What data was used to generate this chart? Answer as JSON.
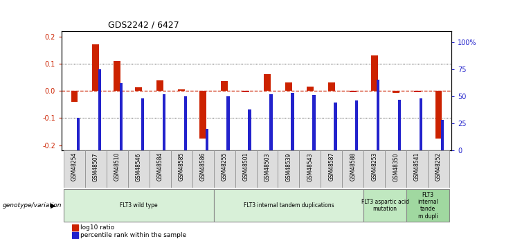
{
  "title": "GDS2242 / 6427",
  "samples": [
    "GSM48254",
    "GSM48507",
    "GSM48510",
    "GSM48546",
    "GSM48584",
    "GSM48585",
    "GSM48586",
    "GSM48255",
    "GSM48501",
    "GSM48503",
    "GSM48539",
    "GSM48543",
    "GSM48587",
    "GSM48588",
    "GSM48253",
    "GSM48350",
    "GSM48541",
    "GSM48252"
  ],
  "log10_ratio": [
    -0.04,
    0.17,
    0.11,
    0.012,
    0.038,
    0.006,
    -0.175,
    0.036,
    -0.004,
    0.062,
    0.032,
    0.016,
    0.03,
    -0.004,
    0.13,
    -0.008,
    -0.005,
    -0.175
  ],
  "percentile_rank": [
    30,
    75,
    62,
    48,
    52,
    50,
    20,
    50,
    38,
    52,
    53,
    51,
    44,
    46,
    65,
    47,
    48,
    28
  ],
  "groups": [
    {
      "label": "FLT3 wild type",
      "start": 0,
      "end": 6,
      "color": "#d8f0d8"
    },
    {
      "label": "FLT3 internal tandem duplications",
      "start": 7,
      "end": 13,
      "color": "#d8f0d8"
    },
    {
      "label": "FLT3 aspartic acid\nmutation",
      "start": 14,
      "end": 15,
      "color": "#c0e8c0"
    },
    {
      "label": "FLT3\ninternal\ntande\nm dupli",
      "start": 16,
      "end": 17,
      "color": "#a0d8a0"
    }
  ],
  "ylim": [
    -0.22,
    0.22
  ],
  "y2lim": [
    0,
    110
  ],
  "y_ticks_left": [
    -0.2,
    -0.1,
    0.0,
    0.1,
    0.2
  ],
  "y_ticks_right": [
    0,
    25,
    50,
    75,
    100
  ],
  "y_ticks_right_labels": [
    "0",
    "25",
    "50",
    "75",
    "100%"
  ],
  "bar_color_red": "#cc2200",
  "bar_color_blue": "#2222cc",
  "legend_items": [
    "log10 ratio",
    "percentile rank within the sample"
  ],
  "group_label_y": "genotype/variation"
}
